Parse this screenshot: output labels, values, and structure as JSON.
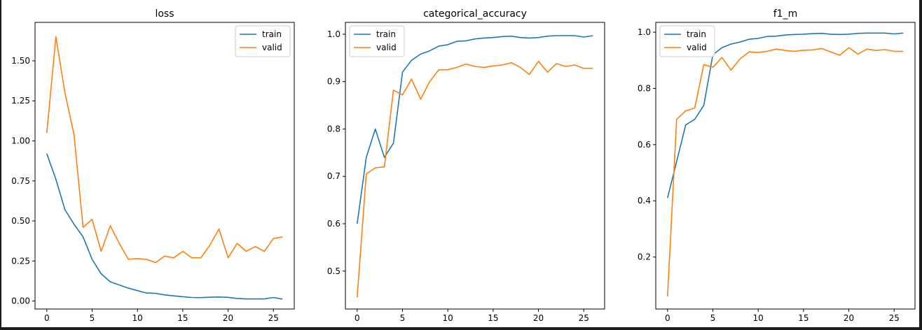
{
  "colors": {
    "train": "#1f77b4",
    "valid": "#ff7f0e",
    "frame": "#1c1c1c",
    "background": "#ffffff"
  },
  "chart_data": [
    {
      "type": "line",
      "title": "loss",
      "xlabel": "",
      "ylabel": "",
      "xlim": [
        -1.3,
        27.3
      ],
      "ylim": [
        -0.05,
        1.74
      ],
      "xticks": [
        0,
        5,
        10,
        15,
        20,
        25
      ],
      "xtick_labels": [
        "0",
        "5",
        "10",
        "15",
        "20",
        "25"
      ],
      "yticks": [
        0.0,
        0.25,
        0.5,
        0.75,
        1.0,
        1.25,
        1.5
      ],
      "ytick_labels": [
        "0.00",
        "0.25",
        "0.50",
        "0.75",
        "1.00",
        "1.25",
        "1.50"
      ],
      "legend_position": "upper right",
      "grid": false,
      "x": [
        0,
        1,
        2,
        3,
        4,
        5,
        6,
        7,
        8,
        9,
        10,
        11,
        12,
        13,
        14,
        15,
        16,
        17,
        18,
        19,
        20,
        21,
        22,
        23,
        24,
        25,
        26
      ],
      "series": [
        {
          "name": "train",
          "values": [
            0.92,
            0.76,
            0.57,
            0.48,
            0.4,
            0.26,
            0.17,
            0.12,
            0.1,
            0.08,
            0.065,
            0.05,
            0.048,
            0.038,
            0.032,
            0.027,
            0.022,
            0.021,
            0.024,
            0.025,
            0.023,
            0.016,
            0.013,
            0.013,
            0.013,
            0.022,
            0.012
          ]
        },
        {
          "name": "valid",
          "values": [
            1.05,
            1.65,
            1.3,
            1.04,
            0.46,
            0.51,
            0.31,
            0.47,
            0.36,
            0.26,
            0.265,
            0.26,
            0.24,
            0.28,
            0.27,
            0.31,
            0.27,
            0.27,
            0.35,
            0.45,
            0.27,
            0.36,
            0.31,
            0.34,
            0.31,
            0.39,
            0.4
          ]
        }
      ]
    },
    {
      "type": "line",
      "title": "categorical_accuracy",
      "xlabel": "",
      "ylabel": "",
      "xlim": [
        -1.3,
        27.3
      ],
      "ylim": [
        0.42,
        1.025
      ],
      "xticks": [
        0,
        5,
        10,
        15,
        20,
        25
      ],
      "xtick_labels": [
        "0",
        "5",
        "10",
        "15",
        "20",
        "25"
      ],
      "yticks": [
        0.5,
        0.6,
        0.7,
        0.8,
        0.9,
        1.0
      ],
      "ytick_labels": [
        "0.5",
        "0.6",
        "0.7",
        "0.8",
        "0.9",
        "1.0"
      ],
      "legend_position": "upper left",
      "grid": false,
      "x": [
        0,
        1,
        2,
        3,
        4,
        5,
        6,
        7,
        8,
        9,
        10,
        11,
        12,
        13,
        14,
        15,
        16,
        17,
        18,
        19,
        20,
        21,
        22,
        23,
        24,
        25,
        26
      ],
      "series": [
        {
          "name": "train",
          "values": [
            0.6,
            0.74,
            0.8,
            0.74,
            0.77,
            0.92,
            0.945,
            0.958,
            0.965,
            0.975,
            0.978,
            0.985,
            0.986,
            0.99,
            0.992,
            0.993,
            0.995,
            0.996,
            0.993,
            0.992,
            0.993,
            0.996,
            0.997,
            0.997,
            0.997,
            0.994,
            0.997
          ]
        },
        {
          "name": "valid",
          "values": [
            0.445,
            0.705,
            0.718,
            0.72,
            0.882,
            0.872,
            0.905,
            0.863,
            0.9,
            0.925,
            0.925,
            0.93,
            0.937,
            0.932,
            0.93,
            0.933,
            0.935,
            0.94,
            0.93,
            0.915,
            0.943,
            0.92,
            0.938,
            0.932,
            0.935,
            0.928,
            0.928
          ]
        }
      ]
    },
    {
      "type": "line",
      "title": "f1_m",
      "xlabel": "",
      "ylabel": "",
      "xlim": [
        -1.3,
        27.3
      ],
      "ylim": [
        0.015,
        1.035
      ],
      "xticks": [
        0,
        5,
        10,
        15,
        20,
        25
      ],
      "xtick_labels": [
        "0",
        "5",
        "10",
        "15",
        "20",
        "25"
      ],
      "yticks": [
        0.2,
        0.4,
        0.6,
        0.8,
        1.0
      ],
      "ytick_labels": [
        "0.2",
        "0.4",
        "0.6",
        "0.8",
        "1.0"
      ],
      "legend_position": "upper left",
      "grid": false,
      "x": [
        0,
        1,
        2,
        3,
        4,
        5,
        6,
        7,
        8,
        9,
        10,
        11,
        12,
        13,
        14,
        15,
        16,
        17,
        18,
        19,
        20,
        21,
        22,
        23,
        24,
        25,
        26
      ],
      "series": [
        {
          "name": "train",
          "values": [
            0.41,
            0.54,
            0.67,
            0.69,
            0.74,
            0.92,
            0.945,
            0.958,
            0.965,
            0.975,
            0.978,
            0.985,
            0.986,
            0.99,
            0.992,
            0.993,
            0.995,
            0.996,
            0.993,
            0.992,
            0.993,
            0.996,
            0.997,
            0.997,
            0.997,
            0.994,
            0.997
          ]
        },
        {
          "name": "valid",
          "values": [
            0.06,
            0.69,
            0.72,
            0.73,
            0.885,
            0.875,
            0.91,
            0.865,
            0.905,
            0.93,
            0.928,
            0.932,
            0.94,
            0.935,
            0.932,
            0.936,
            0.937,
            0.942,
            0.93,
            0.918,
            0.945,
            0.922,
            0.94,
            0.935,
            0.938,
            0.932,
            0.932
          ]
        }
      ]
    }
  ]
}
